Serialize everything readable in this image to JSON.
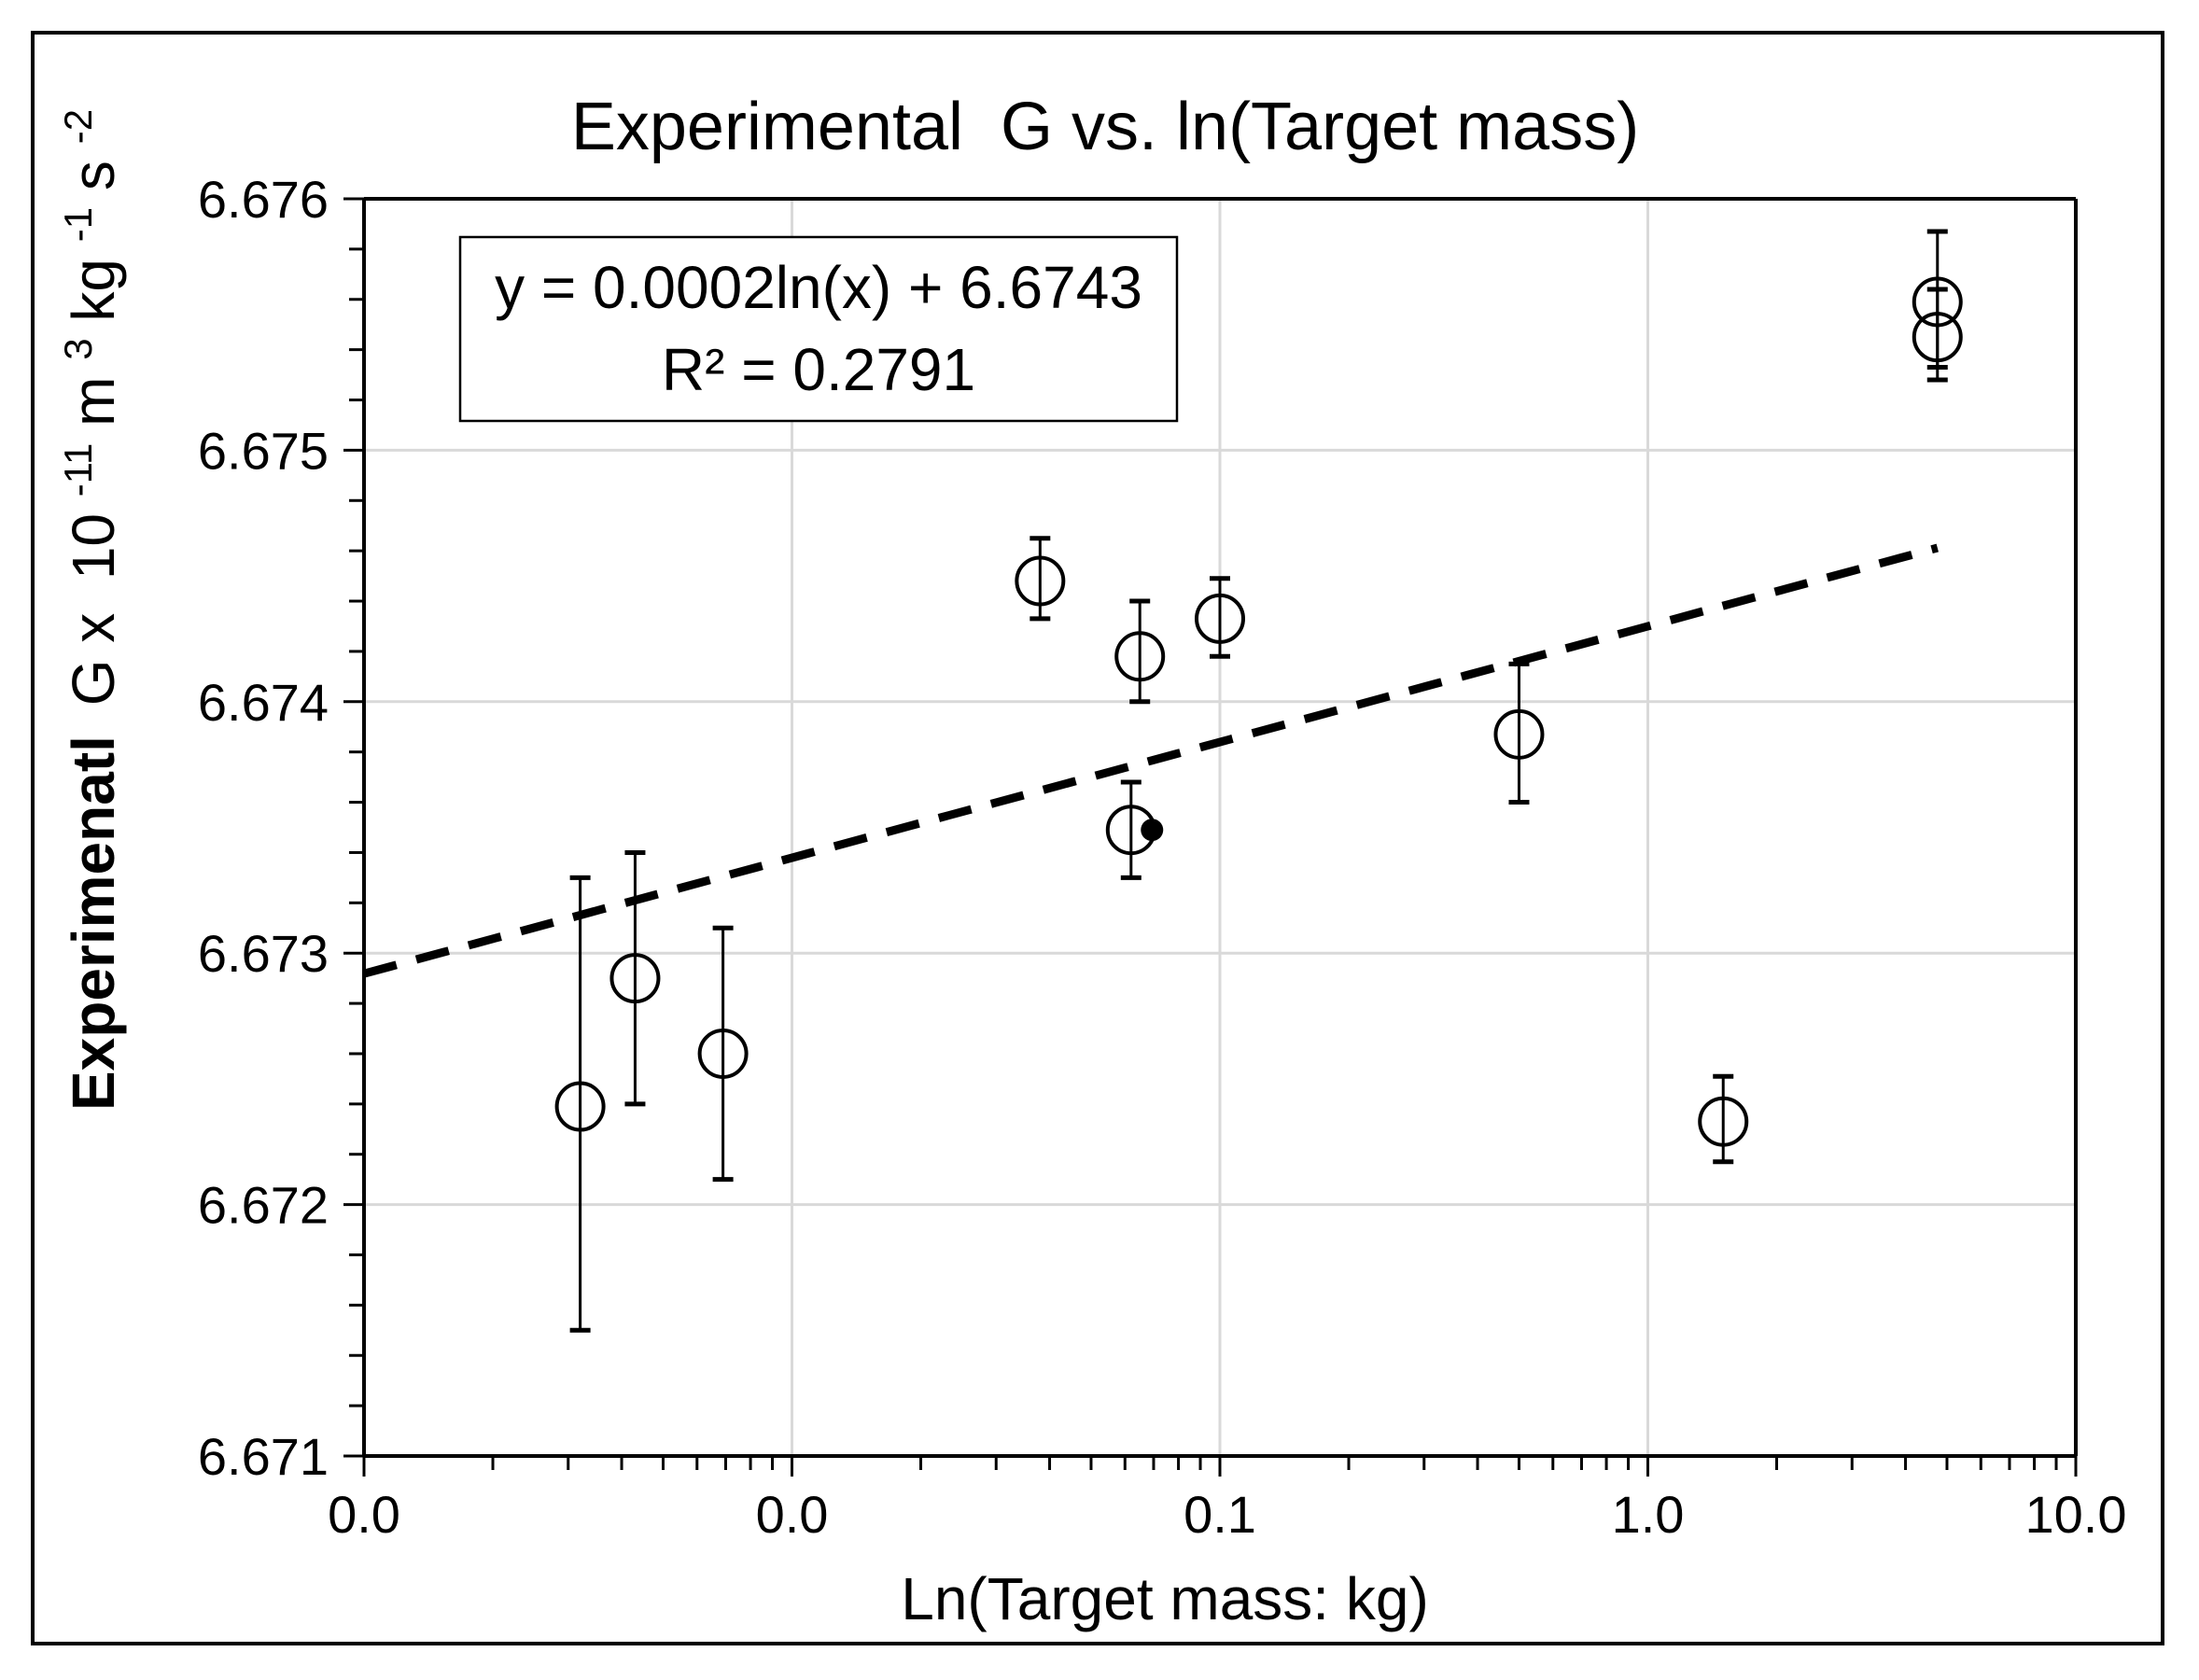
{
  "chart_data": {
    "type": "scatter",
    "title": "Experimental  G vs. ln(Target mass)",
    "xlabel": "Ln(Target mass: kg)",
    "ylabel": {
      "bold": "Experimenatl",
      "rest_prefix": "G x  10",
      "exp1": "-11",
      "unit_m": "m",
      "exp2": "3",
      "unit_kg": "kg",
      "exp3": "-1",
      "unit_s": "s",
      "exp4": "-2"
    },
    "x_scale": "log",
    "xlim": [
      0.001,
      10
    ],
    "ylim": [
      6.671,
      6.676
    ],
    "x_ticks": [
      {
        "value": 0.001,
        "label": "0.0"
      },
      {
        "value": 0.01,
        "label": "0.0"
      },
      {
        "value": 0.1,
        "label": "0.1"
      },
      {
        "value": 1,
        "label": "1.0"
      },
      {
        "value": 10,
        "label": "10.0"
      }
    ],
    "y_ticks": [
      {
        "value": 6.671,
        "label": "6.671"
      },
      {
        "value": 6.672,
        "label": "6.672"
      },
      {
        "value": 6.673,
        "label": "6.673"
      },
      {
        "value": 6.674,
        "label": "6.674"
      },
      {
        "value": 6.675,
        "label": "6.675"
      },
      {
        "value": 6.676,
        "label": "6.676"
      }
    ],
    "grid": true,
    "points": [
      {
        "x": 0.0032,
        "y": 6.67239,
        "err_low": 6.6715,
        "err_high": 6.6733
      },
      {
        "x": 0.0043,
        "y": 6.6729,
        "err_low": 6.6724,
        "err_high": 6.6734
      },
      {
        "x": 0.0069,
        "y": 6.6726,
        "err_low": 6.6721,
        "err_high": 6.6731
      },
      {
        "x": 0.038,
        "y": 6.67448,
        "err_low": 6.67433,
        "err_high": 6.67465
      },
      {
        "x": 0.062,
        "y": 6.67349,
        "err_low": 6.6733,
        "err_high": 6.67368
      },
      {
        "x": 0.065,
        "y": 6.67418,
        "err_low": 6.674,
        "err_high": 6.6744
      },
      {
        "x": 0.1,
        "y": 6.67433,
        "err_low": 6.67418,
        "err_high": 6.67449
      },
      {
        "x": 0.5,
        "y": 6.67387,
        "err_low": 6.6736,
        "err_high": 6.67415
      },
      {
        "x": 1.5,
        "y": 6.67233,
        "err_low": 6.67217,
        "err_high": 6.67251
      },
      {
        "x": 4.75,
        "y": 6.67559,
        "err_low": 6.67533,
        "err_high": 6.67587
      },
      {
        "x": 4.75,
        "y": 6.67545,
        "err_low": 6.67528,
        "err_high": 6.67564
      }
    ],
    "filled_point": {
      "x": 0.066,
      "y": 6.67349
    },
    "trendline": {
      "type": "logarithmic",
      "style": "dashed",
      "slope": 0.0002,
      "intercept": 6.6743,
      "x_start": 0.001,
      "x_end": 4.75,
      "equation": "y = 0.0002ln(x) + 6.6743",
      "r2": "R² = 0.2791"
    }
  }
}
